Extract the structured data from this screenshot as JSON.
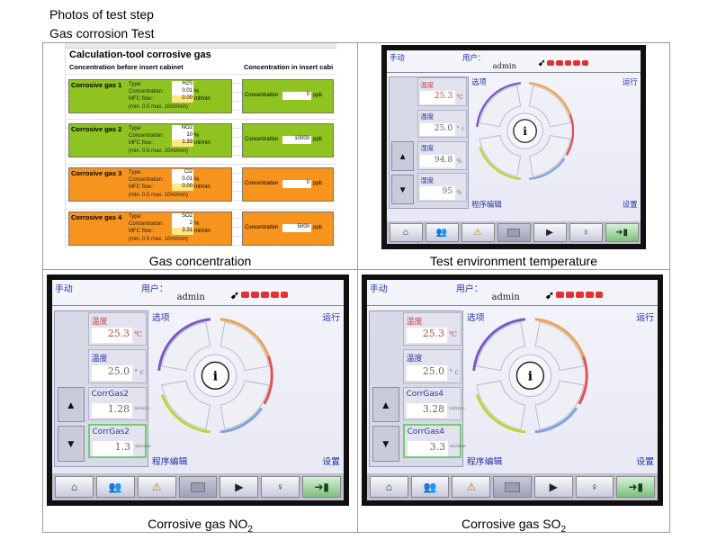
{
  "header": {
    "line1": "Photos of test step",
    "line2": "Gas corrosion Test"
  },
  "captions": {
    "gas_concentration": "Gas concentration",
    "test_env_temp": "Test environment temperature",
    "no2_prefix": "Corrosive gas NO",
    "no2_sub": "2",
    "so2_prefix": "Corrosive gas SO",
    "so2_sub": "2"
  },
  "sheet": {
    "title": "Calculation-tool corrosive gas",
    "sub_left": "Concentration before insert cabinet",
    "sub_right": "Concentration in insert cabi",
    "row_labels": {
      "type": "Type:",
      "conc": "Concentration:",
      "mfc": "MFC flow:",
      "range": "(min. 0.5  max. 10ml/min)"
    },
    "conc_label": "Concentration",
    "unit_ppb": "ppb",
    "gases": [
      {
        "name": "Corrosive gas 1",
        "type": "H2S",
        "conc": "0.01",
        "conc_unit": "%",
        "mfc": "0.00",
        "mfc_unit": "ml/min",
        "inside": "0",
        "color": "#8fc31f"
      },
      {
        "name": "Corrosive gas 2",
        "type": "NO2",
        "conc": "10",
        "conc_unit": "%",
        "mfc": "1.33",
        "mfc_unit": "ml/min",
        "inside": "10000",
        "color": "#8fc31f"
      },
      {
        "name": "Corrosive gas 3",
        "type": "Cl2",
        "conc": "0.01",
        "conc_unit": "%",
        "mfc": "0.00",
        "mfc_unit": "ml/min",
        "inside": "0",
        "color": "#f7941d"
      },
      {
        "name": "Corrosive gas 4",
        "type": "SO2",
        "conc": "2",
        "conc_unit": "%",
        "mfc": "3.31",
        "mfc_unit": "ml/min",
        "inside": "5000",
        "color": "#f7941d"
      }
    ]
  },
  "devices": {
    "common": {
      "mode": "手动",
      "user_label": "用户：",
      "user": "admin",
      "options": "选项",
      "run": "运行",
      "program": "程序编辑",
      "settings": "设置",
      "info": "i"
    },
    "temp": {
      "f1_label": "温度",
      "f1_value": "25.3",
      "f1_unit": "℃",
      "f2_label": "温度",
      "f2_value": "25.0",
      "f2_unit": "° c",
      "f3_label": "湿度",
      "f3_value": "94.8",
      "f3_unit": "%",
      "f4_label": "湿度",
      "f4_value": "95",
      "f4_unit": "%"
    },
    "no2": {
      "f1_label": "温度",
      "f1_value": "25.3",
      "f1_unit": "℃",
      "f2_label": "温度",
      "f2_value": "25.0",
      "f2_unit": "° c",
      "f3_label": "CorrGas2",
      "f3_value": "1.28",
      "f3_unit": "ml/min",
      "f4_label": "CorrGas2",
      "f4_value": "1.3",
      "f4_unit": "ml/min"
    },
    "so2": {
      "f1_label": "温度",
      "f1_value": "25.3",
      "f1_unit": "℃",
      "f2_label": "温度",
      "f2_value": "25.0",
      "f2_unit": "° c",
      "f3_label": "CorrGas4",
      "f3_value": "3.28",
      "f3_unit": "ml/min",
      "f4_label": "CorrGas4",
      "f4_value": "3.3",
      "f4_unit": "ml/min"
    },
    "toolbar_icons": [
      "home-icon",
      "users-icon",
      "warning-icon",
      "stop-icon",
      "play-icon",
      "bulb-icon",
      "exit-icon"
    ]
  }
}
